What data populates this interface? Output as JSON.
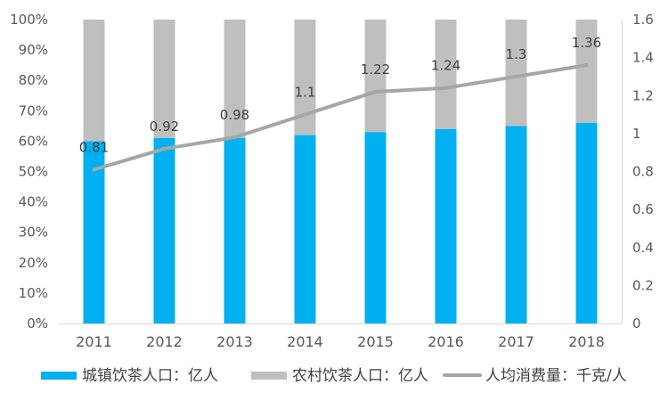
{
  "chart_data": {
    "type": "bar",
    "categories": [
      "2011",
      "2012",
      "2013",
      "2014",
      "2015",
      "2016",
      "2017",
      "2018"
    ],
    "series": [
      {
        "name": "城镇饮茶人口：亿人",
        "type": "bar",
        "axis": "left",
        "values": [
          0.6,
          0.61,
          0.61,
          0.62,
          0.63,
          0.64,
          0.65,
          0.66
        ],
        "color": "#00B0F0"
      },
      {
        "name": "农村饮茶人口：亿人",
        "type": "bar",
        "axis": "left",
        "values": [
          0.4,
          0.39,
          0.39,
          0.38,
          0.37,
          0.36,
          0.35,
          0.34
        ],
        "color": "#BFBFBF"
      },
      {
        "name": "人均消费量：千克/人",
        "type": "line",
        "axis": "right",
        "values": [
          0.81,
          0.92,
          0.98,
          1.1,
          1.22,
          1.24,
          1.3,
          1.36
        ],
        "labels": [
          "0.81",
          "0.92",
          "0.98",
          "1.1",
          "1.22",
          "1.24",
          "1.3",
          "1.36"
        ],
        "color": "#A6A6A6"
      }
    ],
    "stacked": true,
    "y_left": {
      "ylim": [
        0,
        1
      ],
      "ticks": [
        "0%",
        "10%",
        "20%",
        "30%",
        "40%",
        "50%",
        "60%",
        "70%",
        "80%",
        "90%",
        "100%"
      ]
    },
    "y_right": {
      "ylim": [
        0,
        1.6
      ],
      "ticks": [
        "0",
        "0.2",
        "0.4",
        "0.6",
        "0.8",
        "1",
        "1.2",
        "1.4",
        "1.6"
      ]
    },
    "grid": false,
    "legend": "bottom"
  }
}
